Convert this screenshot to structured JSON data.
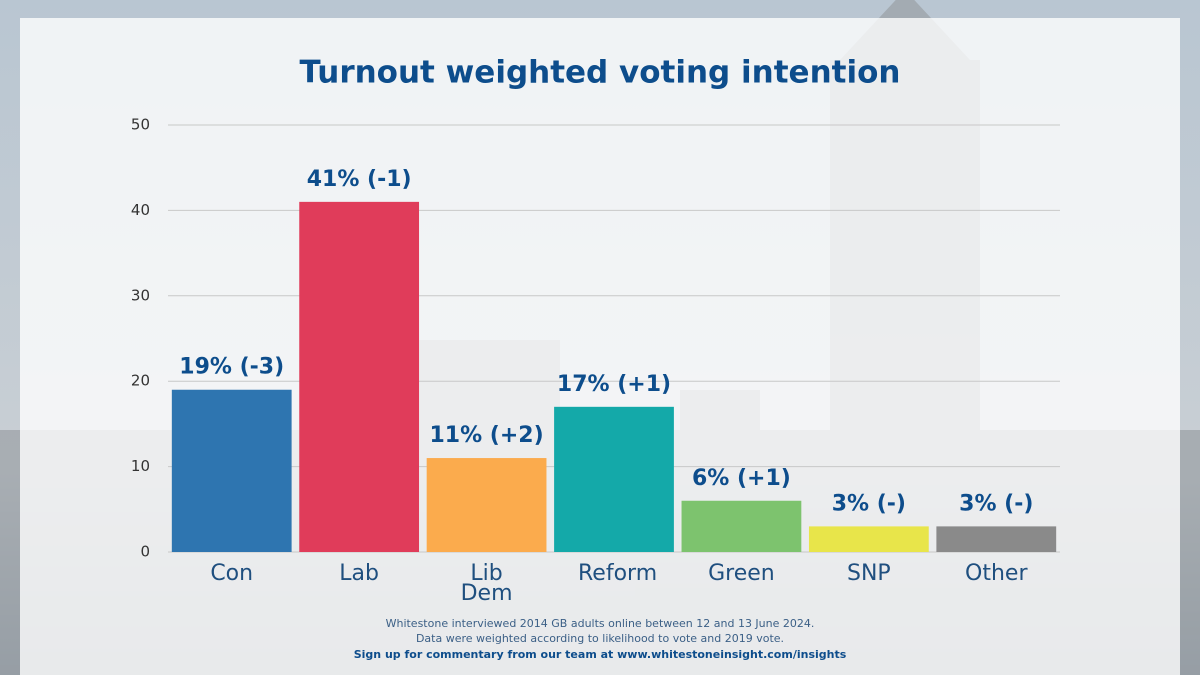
{
  "chart_data": {
    "type": "bar",
    "title": "Turnout weighted voting intention",
    "categories": [
      "Con",
      "Lab",
      "Lib Dem",
      "Reform",
      "Green",
      "SNP",
      "Other"
    ],
    "values": [
      19,
      41,
      11,
      17,
      6,
      3,
      3
    ],
    "value_labels": [
      "19% (-3)",
      "41% (-1)",
      "11% (+2)",
      "17% (+1)",
      "6% (+1)",
      "3% (-)",
      "3% (-)"
    ],
    "colors": [
      "#2e75b0",
      "#e03c5a",
      "#fbab4d",
      "#14a9a9",
      "#7dc36e",
      "#e8e54a",
      "#8a8a8a"
    ],
    "ylim": [
      0,
      50
    ],
    "yticks": [
      0,
      10,
      20,
      30,
      40,
      50
    ],
    "grid": true,
    "footnotes": [
      "Whitestone interviewed 2014 GB adults online between 12 and 13 June 2024.",
      "Data were weighted according to likelihood to vote and 2019 vote."
    ],
    "call_to_action": "Sign up for commentary from our team at www.whitestoneinsight.com/insights"
  }
}
